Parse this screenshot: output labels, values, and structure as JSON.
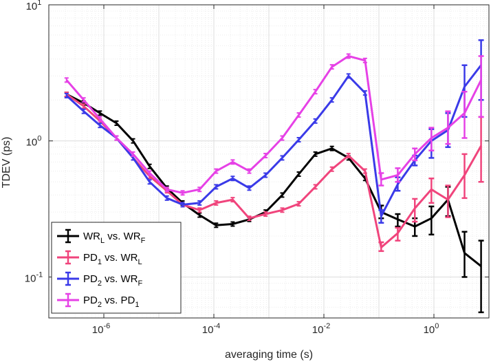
{
  "chart_data": {
    "type": "line",
    "xscale": "log",
    "yscale": "log",
    "xlabel": "averaging time (s)",
    "ylabel": "TDEV (ps)",
    "xlim": [
      1e-07,
      10
    ],
    "ylim": [
      0.05,
      10
    ],
    "x_ticks": [
      {
        "value": 1e-06,
        "base": "10",
        "exp": "-6"
      },
      {
        "value": 0.0001,
        "base": "10",
        "exp": "-4"
      },
      {
        "value": 0.01,
        "base": "10",
        "exp": "-2"
      },
      {
        "value": 1,
        "base": "10",
        "exp": "0"
      }
    ],
    "y_ticks": [
      {
        "value": 0.1,
        "base": "10",
        "exp": "-1"
      },
      {
        "value": 1,
        "base": "10",
        "exp": "0"
      },
      {
        "value": 10,
        "base": "10",
        "exp": "1"
      }
    ],
    "grid": true,
    "legend_position": "bottom-left",
    "series": [
      {
        "name": "WR_L vs. WR_F",
        "label_main": "WR",
        "label_sub1": "L",
        "label_mid": " vs. WR",
        "label_sub2": "F",
        "color": "#000000",
        "x": [
          2.1e-07,
          4.3e-07,
          8.5e-07,
          1.7e-06,
          3.4e-06,
          6.8e-06,
          1.4e-05,
          2.7e-05,
          5.5e-05,
          0.00011,
          0.00022,
          0.00044,
          0.00087,
          0.00175,
          0.0035,
          0.007,
          0.014,
          0.028,
          0.056,
          0.11,
          0.22,
          0.45,
          0.9,
          1.8,
          3.6,
          7.2
        ],
        "y": [
          2.2,
          1.9,
          1.6,
          1.35,
          1.0,
          0.65,
          0.45,
          0.35,
          0.285,
          0.24,
          0.245,
          0.265,
          0.3,
          0.4,
          0.57,
          0.8,
          0.88,
          0.75,
          0.53,
          0.3,
          0.265,
          0.235,
          0.27,
          0.37,
          0.15,
          0.12
        ],
        "err_from_index": 19,
        "err_lo": [
          null,
          null,
          null,
          null,
          null,
          null,
          null,
          null,
          null,
          null,
          null,
          null,
          null,
          null,
          null,
          null,
          null,
          null,
          null,
          0.27,
          0.235,
          0.2,
          0.205,
          0.28,
          0.1,
          0.055
        ],
        "err_hi": [
          null,
          null,
          null,
          null,
          null,
          null,
          null,
          null,
          null,
          null,
          null,
          null,
          null,
          null,
          null,
          null,
          null,
          null,
          null,
          0.335,
          0.29,
          0.27,
          0.33,
          0.46,
          0.215,
          0.185
        ]
      },
      {
        "name": "PD_1 vs. WR_L",
        "label_main": "PD",
        "label_sub1": "1",
        "label_mid": " vs. WR",
        "label_sub2": "L",
        "color": "#f0447c",
        "x": [
          2.1e-07,
          4.3e-07,
          8.5e-07,
          1.7e-06,
          3.4e-06,
          6.8e-06,
          1.4e-05,
          2.7e-05,
          5.5e-05,
          0.00011,
          0.00022,
          0.00044,
          0.00087,
          0.00175,
          0.0035,
          0.007,
          0.014,
          0.028,
          0.056,
          0.11,
          0.22,
          0.45,
          0.9,
          1.8,
          3.6,
          7.2
        ],
        "y": [
          2.2,
          1.8,
          1.4,
          1.05,
          0.75,
          0.55,
          0.43,
          0.34,
          0.31,
          0.35,
          0.37,
          0.27,
          0.29,
          0.31,
          0.345,
          0.46,
          0.62,
          0.78,
          0.6,
          0.165,
          0.21,
          0.32,
          0.44,
          0.37,
          0.56,
          0.92
        ],
        "err_from_index": 19,
        "err_lo": [
          null,
          null,
          null,
          null,
          null,
          null,
          null,
          null,
          null,
          null,
          null,
          null,
          null,
          null,
          null,
          null,
          null,
          null,
          null,
          0.155,
          0.185,
          0.255,
          0.35,
          0.275,
          0.38,
          0.5
        ],
        "err_hi": [
          null,
          null,
          null,
          null,
          null,
          null,
          null,
          null,
          null,
          null,
          null,
          null,
          null,
          null,
          null,
          null,
          null,
          null,
          null,
          0.18,
          0.23,
          0.375,
          0.53,
          0.47,
          0.8,
          1.5
        ]
      },
      {
        "name": "PD_2 vs. WR_F",
        "label_main": "PD",
        "label_sub1": "2",
        "label_mid": " vs. WR",
        "label_sub2": "F",
        "color": "#3a3ae8",
        "x": [
          2.1e-07,
          4.3e-07,
          8.5e-07,
          1.7e-06,
          3.4e-06,
          6.8e-06,
          1.4e-05,
          2.7e-05,
          5.5e-05,
          0.00011,
          0.00022,
          0.00044,
          0.00087,
          0.00175,
          0.0035,
          0.007,
          0.014,
          0.028,
          0.056,
          0.11,
          0.22,
          0.45,
          0.9,
          1.8,
          3.6,
          7.2
        ],
        "y": [
          2.15,
          1.65,
          1.3,
          1.05,
          0.75,
          0.5,
          0.38,
          0.34,
          0.35,
          0.46,
          0.53,
          0.45,
          0.56,
          0.75,
          1.02,
          1.4,
          2.0,
          3.0,
          2.25,
          0.28,
          0.48,
          0.72,
          1.0,
          1.2,
          2.5,
          3.6
        ],
        "err_from_index": 19,
        "err_lo": [
          null,
          null,
          null,
          null,
          null,
          null,
          null,
          null,
          null,
          null,
          null,
          null,
          null,
          null,
          null,
          null,
          null,
          null,
          null,
          0.25,
          0.43,
          0.66,
          0.75,
          0.9,
          1.5,
          2.0
        ],
        "err_hi": [
          null,
          null,
          null,
          null,
          null,
          null,
          null,
          null,
          null,
          null,
          null,
          null,
          null,
          null,
          null,
          null,
          null,
          null,
          null,
          0.31,
          0.54,
          0.78,
          1.22,
          1.6,
          3.6,
          5.5
        ]
      },
      {
        "name": "PD_2 vs. PD_1",
        "label_main": "PD",
        "label_sub1": "2",
        "label_mid": " vs. PD",
        "label_sub2": "1",
        "color": "#e641e6",
        "x": [
          2.1e-07,
          4.3e-07,
          8.5e-07,
          1.7e-06,
          3.4e-06,
          6.8e-06,
          1.4e-05,
          2.7e-05,
          5.5e-05,
          0.00011,
          0.00022,
          0.00044,
          0.00087,
          0.00175,
          0.0035,
          0.007,
          0.014,
          0.028,
          0.056,
          0.11,
          0.22,
          0.45,
          0.9,
          1.8,
          3.6,
          7.2
        ],
        "y": [
          2.8,
          2.0,
          1.45,
          1.05,
          0.8,
          0.58,
          0.44,
          0.415,
          0.44,
          0.6,
          0.7,
          0.6,
          0.78,
          1.05,
          1.55,
          2.3,
          3.5,
          4.2,
          3.9,
          0.52,
          0.56,
          0.8,
          1.05,
          1.25,
          1.6,
          2.8
        ],
        "err_from_index": 19,
        "err_lo": [
          null,
          null,
          null,
          null,
          null,
          null,
          null,
          null,
          null,
          null,
          null,
          null,
          null,
          null,
          null,
          null,
          null,
          null,
          null,
          0.47,
          0.5,
          0.72,
          0.85,
          0.95,
          1.05,
          1.5
        ],
        "err_hi": [
          null,
          null,
          null,
          null,
          null,
          null,
          null,
          null,
          null,
          null,
          null,
          null,
          null,
          null,
          null,
          null,
          null,
          null,
          null,
          0.58,
          0.63,
          0.88,
          1.25,
          1.65,
          2.3,
          4.2
        ]
      }
    ]
  }
}
